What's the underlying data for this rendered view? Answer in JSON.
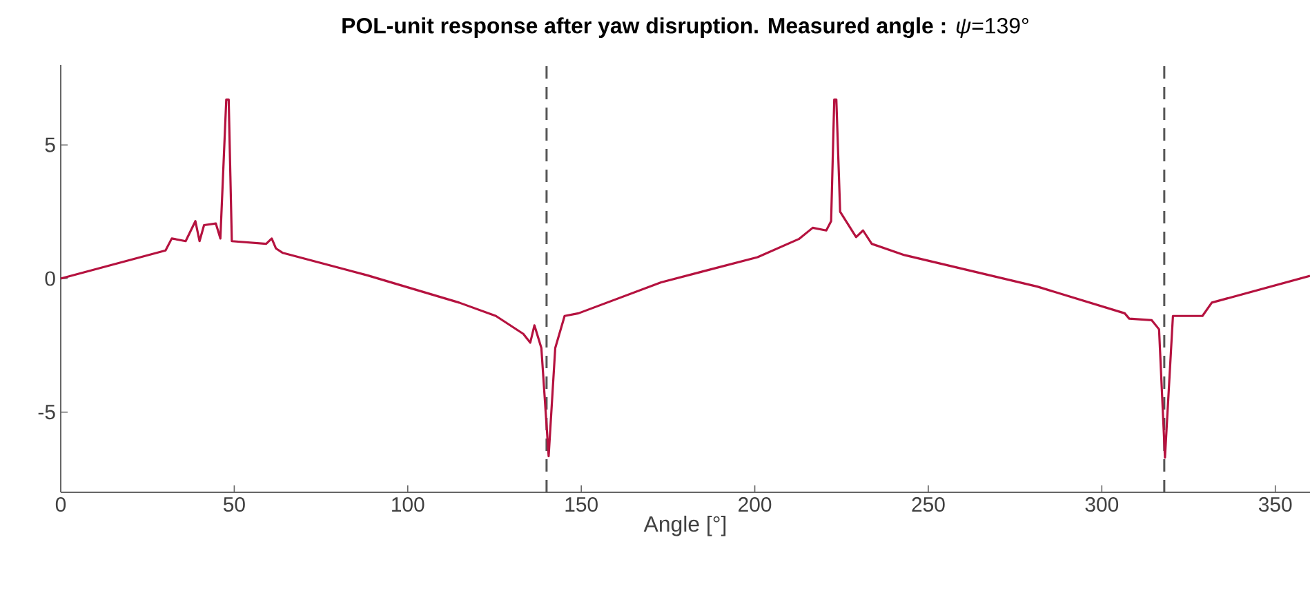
{
  "chart_data": {
    "type": "line",
    "title": "**POL-unit response after yaw disruption. Measured angle :** *ψ*=139°",
    "xlabel": "Angle [°]",
    "xlim": [
      0,
      360
    ],
    "ylim": [
      -8,
      8
    ],
    "xticks": [
      0,
      50,
      100,
      150,
      200,
      250,
      300,
      350
    ],
    "yticks": [
      -5,
      0,
      5
    ],
    "grid": false,
    "ref_lines": [
      {
        "axis": "x",
        "value": 140,
        "color": "#555555",
        "line_style": "dashed"
      },
      {
        "axis": "x",
        "value": 318,
        "color": "#555555",
        "line_style": "dashed"
      }
    ],
    "series": [
      {
        "color": "#b5123f",
        "x": [
          0,
          30.2,
          32,
          36,
          38.8,
          40,
          41.3,
          44.7,
          46,
          47.7,
          48.4,
          49.3,
          59.2,
          60.8,
          62,
          64,
          88.4,
          114.8,
          125.4,
          133.3,
          135.3,
          136.5,
          138.5,
          140.6,
          142.5,
          145.2,
          149.2,
          173,
          200.8,
          212.7,
          216.7,
          220.6,
          222,
          222.9,
          223.5,
          224.6,
          229.2,
          231.2,
          233.7,
          243.1,
          281.4,
          306.6,
          307.9,
          314.4,
          316.5,
          318.2,
          320.5,
          329,
          331.7,
          360
        ],
        "values": [
          0,
          1.05,
          1.5,
          1.4,
          2.15,
          1.4,
          2.0,
          2.06,
          1.5,
          6.7,
          6.7,
          1.4,
          1.3,
          1.5,
          1.13,
          0.96,
          0.12,
          -0.9,
          -1.4,
          -2.07,
          -2.4,
          -1.75,
          -2.6,
          -6.65,
          -2.6,
          -1.4,
          -1.3,
          -0.14,
          0.8,
          1.48,
          1.9,
          1.8,
          2.15,
          6.7,
          6.7,
          2.5,
          1.55,
          1.8,
          1.3,
          0.88,
          -0.3,
          -1.3,
          -1.5,
          -1.56,
          -1.9,
          -6.7,
          -1.4,
          -1.4,
          -0.9,
          0.1
        ]
      }
    ]
  }
}
